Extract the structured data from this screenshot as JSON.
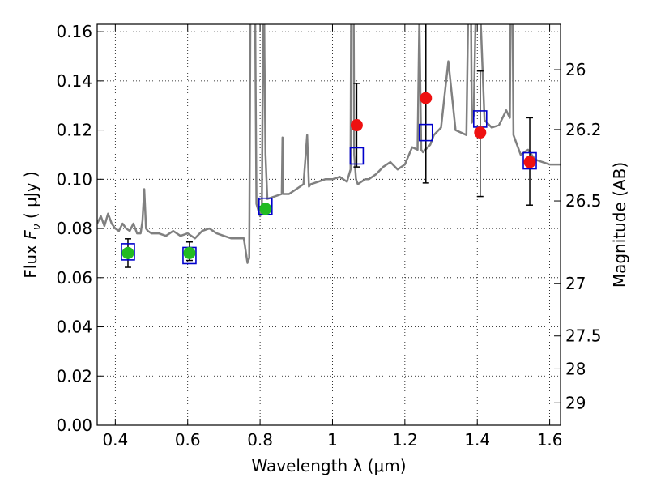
{
  "chart_data": {
    "type": "scatter",
    "title": "",
    "xlabel": "Wavelength  λ (μm)",
    "ylabel_prefix": "Flux  ",
    "ylabel_symbol": "F",
    "ylabel_subscript": "ν",
    "ylabel_suffix": "  (  μJy  )",
    "ylabel_right": "Magnitude (AB)",
    "xlim": [
      0.35,
      1.63
    ],
    "ylim": [
      0.0,
      0.163
    ],
    "grid": true,
    "grid_style": "dotted",
    "x_ticks": [
      {
        "value": 0.4,
        "label": "0.4"
      },
      {
        "value": 0.6,
        "label": "0.6"
      },
      {
        "value": 0.8,
        "label": "0.8"
      },
      {
        "value": 1.0,
        "label": "1"
      },
      {
        "value": 1.2,
        "label": "1.2"
      },
      {
        "value": 1.4,
        "label": "1.4"
      },
      {
        "value": 1.6,
        "label": "1.6"
      }
    ],
    "y_ticks": [
      {
        "value": 0.0,
        "label": "0.00"
      },
      {
        "value": 0.02,
        "label": "0.02"
      },
      {
        "value": 0.04,
        "label": "0.04"
      },
      {
        "value": 0.06,
        "label": "0.06"
      },
      {
        "value": 0.08,
        "label": "0.08"
      },
      {
        "value": 0.1,
        "label": "0.10"
      },
      {
        "value": 0.12,
        "label": "0.12"
      },
      {
        "value": 0.14,
        "label": "0.14"
      },
      {
        "value": 0.16,
        "label": "0.16"
      }
    ],
    "right_ticks": [
      {
        "magnitude": 26,
        "label": "26"
      },
      {
        "magnitude": 26.2,
        "label": "26.2"
      },
      {
        "magnitude": 26.5,
        "label": "26.5"
      },
      {
        "magnitude": 27,
        "label": "27"
      },
      {
        "magnitude": 27.5,
        "label": "27.5"
      },
      {
        "magnitude": 28,
        "label": "28"
      },
      {
        "magnitude": 29,
        "label": "29"
      }
    ],
    "series": [
      {
        "kind": "model_spectrum",
        "color": "#808080",
        "x": [
          0.35,
          0.36,
          0.37,
          0.38,
          0.39,
          0.4,
          0.41,
          0.42,
          0.43,
          0.44,
          0.45,
          0.46,
          0.47,
          0.475,
          0.48,
          0.485,
          0.49,
          0.5,
          0.52,
          0.54,
          0.56,
          0.58,
          0.6,
          0.62,
          0.64,
          0.66,
          0.68,
          0.7,
          0.72,
          0.74,
          0.755,
          0.765,
          0.77,
          0.772,
          0.774,
          0.78,
          0.79,
          0.8,
          0.805,
          0.81,
          0.812,
          0.815,
          0.82,
          0.84,
          0.86,
          0.862,
          0.864,
          0.88,
          0.9,
          0.92,
          0.93,
          0.935,
          0.94,
          0.96,
          0.98,
          1.0,
          1.02,
          1.04,
          1.05,
          1.055,
          1.06,
          1.065,
          1.07,
          1.09,
          1.1,
          1.12,
          1.14,
          1.16,
          1.18,
          1.2,
          1.22,
          1.235,
          1.24,
          1.245,
          1.25,
          1.27,
          1.28,
          1.3,
          1.32,
          1.34,
          1.37,
          1.38,
          1.385,
          1.39,
          1.4,
          1.42,
          1.44,
          1.46,
          1.48,
          1.49,
          1.495,
          1.5,
          1.52,
          1.54,
          1.56,
          1.58,
          1.6,
          1.62,
          1.63
        ],
        "y": [
          0.082,
          0.085,
          0.081,
          0.086,
          0.082,
          0.08,
          0.079,
          0.082,
          0.08,
          0.079,
          0.082,
          0.078,
          0.078,
          0.083,
          0.096,
          0.08,
          0.079,
          0.078,
          0.078,
          0.077,
          0.079,
          0.077,
          0.078,
          0.076,
          0.079,
          0.08,
          0.078,
          0.077,
          0.076,
          0.076,
          0.076,
          0.066,
          0.068,
          0.13,
          0.2,
          0.3,
          0.09,
          0.085,
          0.088,
          0.2,
          0.15,
          0.11,
          0.092,
          0.093,
          0.094,
          0.117,
          0.094,
          0.094,
          0.096,
          0.098,
          0.118,
          0.097,
          0.098,
          0.099,
          0.1,
          0.1,
          0.101,
          0.099,
          0.104,
          0.3,
          0.11,
          0.1,
          0.098,
          0.1,
          0.1,
          0.102,
          0.105,
          0.107,
          0.104,
          0.106,
          0.113,
          0.112,
          0.165,
          0.112,
          0.111,
          0.114,
          0.118,
          0.121,
          0.148,
          0.12,
          0.118,
          0.22,
          0.123,
          0.126,
          0.2,
          0.124,
          0.121,
          0.122,
          0.128,
          0.125,
          0.22,
          0.118,
          0.11,
          0.112,
          0.108,
          0.107,
          0.106,
          0.106,
          0.106
        ]
      },
      {
        "kind": "model_photometry",
        "marker": "open-square",
        "color": "#0000cc",
        "x": [
          0.435,
          0.605,
          0.815,
          1.067,
          1.258,
          1.408,
          1.545
        ],
        "y": [
          0.0705,
          0.069,
          0.089,
          0.1095,
          0.119,
          0.1245,
          0.1075
        ]
      },
      {
        "kind": "observed_detection",
        "marker": "filled-circle",
        "color": "#22bb22",
        "x": [
          0.435,
          0.605,
          0.815
        ],
        "y": [
          0.07,
          0.07,
          0.088
        ],
        "err_low": [
          0.0058,
          0.003,
          0
        ],
        "err_high": [
          0.0058,
          0.0045,
          0
        ]
      },
      {
        "kind": "observed_other",
        "marker": "filled-circle",
        "color": "#ee1111",
        "x": [
          1.067,
          1.258,
          1.408,
          1.545
        ],
        "y": [
          0.122,
          0.133,
          0.119,
          0.107
        ],
        "err_low": [
          0.017,
          0.0345,
          0.026,
          0.0175
        ],
        "err_high": [
          0.017,
          0.0345,
          0.025,
          0.018
        ]
      }
    ]
  }
}
